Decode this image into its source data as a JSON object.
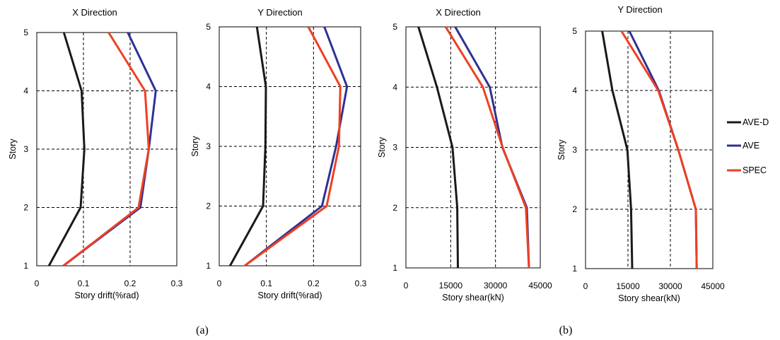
{
  "colors": {
    "AVE-D": "#1a1a1a",
    "AVE": "#2e3192",
    "SPEC": "#ee4023",
    "grid": "#000000"
  },
  "legend": [
    {
      "name": "AVE-D",
      "color": "#1a1a1a"
    },
    {
      "name": "AVE",
      "color": "#2e3192"
    },
    {
      "name": "SPEC",
      "color": "#ee4023"
    }
  ],
  "panel_labels": [
    "(a)",
    "(b)"
  ],
  "chart_data": [
    {
      "type": "line",
      "title": "X Direction",
      "xlabel": "Story drift(%rad)",
      "ylabel": "Story",
      "xlim": [
        0,
        0.3
      ],
      "ylim": [
        1,
        5
      ],
      "xticks": [
        0,
        0.1,
        0.2,
        0.3
      ],
      "xtick_labels": [
        "0",
        "0.1",
        "0.2",
        "0.3"
      ],
      "yticks": [
        1,
        2,
        3,
        4,
        5
      ],
      "ytick_labels": [
        "1",
        "2",
        "3",
        "4",
        "5"
      ],
      "y": [
        1,
        2,
        3,
        4,
        5
      ],
      "grid": true,
      "series": [
        {
          "name": "AVE-D",
          "x": [
            0.026,
            0.094,
            0.102,
            0.096,
            0.058
          ]
        },
        {
          "name": "AVE",
          "x": [
            0.057,
            0.222,
            0.24,
            0.255,
            0.195
          ]
        },
        {
          "name": "SPEC",
          "x": [
            0.057,
            0.218,
            0.24,
            0.232,
            0.154
          ]
        }
      ]
    },
    {
      "type": "line",
      "title": "Y Direction",
      "xlabel": "Story drift(%rad)",
      "ylabel": "Story",
      "xlim": [
        0,
        0.3
      ],
      "ylim": [
        1,
        5
      ],
      "xticks": [
        0,
        0.1,
        0.2,
        0.3
      ],
      "xtick_labels": [
        "0",
        "0.1",
        "0.2",
        "0.3"
      ],
      "yticks": [
        1,
        2,
        3,
        4,
        5
      ],
      "ytick_labels": [
        "1",
        "2",
        "3",
        "4",
        "5"
      ],
      "y": [
        1,
        2,
        3,
        4,
        5
      ],
      "grid": true,
      "series": [
        {
          "name": "AVE-D",
          "x": [
            0.023,
            0.093,
            0.098,
            0.099,
            0.08
          ]
        },
        {
          "name": "AVE",
          "x": [
            0.054,
            0.218,
            0.248,
            0.271,
            0.223
          ]
        },
        {
          "name": "SPEC",
          "x": [
            0.054,
            0.228,
            0.254,
            0.257,
            0.189
          ]
        }
      ]
    },
    {
      "type": "line",
      "title": "X Direction",
      "xlabel": "Story shear(kN)",
      "ylabel": "Story",
      "xlim": [
        0,
        45000
      ],
      "ylim": [
        1,
        5
      ],
      "xticks": [
        0,
        15000,
        30000,
        45000
      ],
      "xtick_labels": [
        "0",
        "15000",
        "30000",
        "45000"
      ],
      "yticks": [
        1,
        2,
        3,
        4,
        5
      ],
      "ytick_labels": [
        "1",
        "2",
        "3",
        "4",
        "5"
      ],
      "y": [
        1,
        2,
        3,
        4,
        5
      ],
      "grid": true,
      "series": [
        {
          "name": "AVE-D",
          "x": [
            17400,
            17200,
            15600,
            10400,
            4200
          ]
        },
        {
          "name": "AVE",
          "x": [
            41200,
            40500,
            32300,
            28100,
            16500
          ]
        },
        {
          "name": "SPEC",
          "x": [
            41200,
            40200,
            32400,
            25800,
            13300
          ]
        }
      ]
    },
    {
      "type": "line",
      "title": "Y Direction",
      "xlabel": "Story shear(kN)",
      "ylabel": "Story",
      "xlim": [
        0,
        45000
      ],
      "ylim": [
        1,
        5
      ],
      "xticks": [
        0,
        15000,
        30000,
        45000
      ],
      "xtick_labels": [
        "0",
        "15000",
        "30000",
        "45000"
      ],
      "yticks": [
        1,
        2,
        3,
        4,
        5
      ],
      "ytick_labels": [
        "1",
        "2",
        "3",
        "4",
        "5"
      ],
      "y": [
        1,
        2,
        3,
        4,
        5
      ],
      "grid": true,
      "series": [
        {
          "name": "AVE-D",
          "x": [
            16500,
            16100,
            14800,
            9500,
            5900
          ]
        },
        {
          "name": "AVE",
          "x": [
            39300,
            39000,
            32800,
            25900,
            15500
          ]
        },
        {
          "name": "SPEC",
          "x": [
            39300,
            39000,
            32800,
            25700,
            12700
          ]
        }
      ]
    }
  ]
}
